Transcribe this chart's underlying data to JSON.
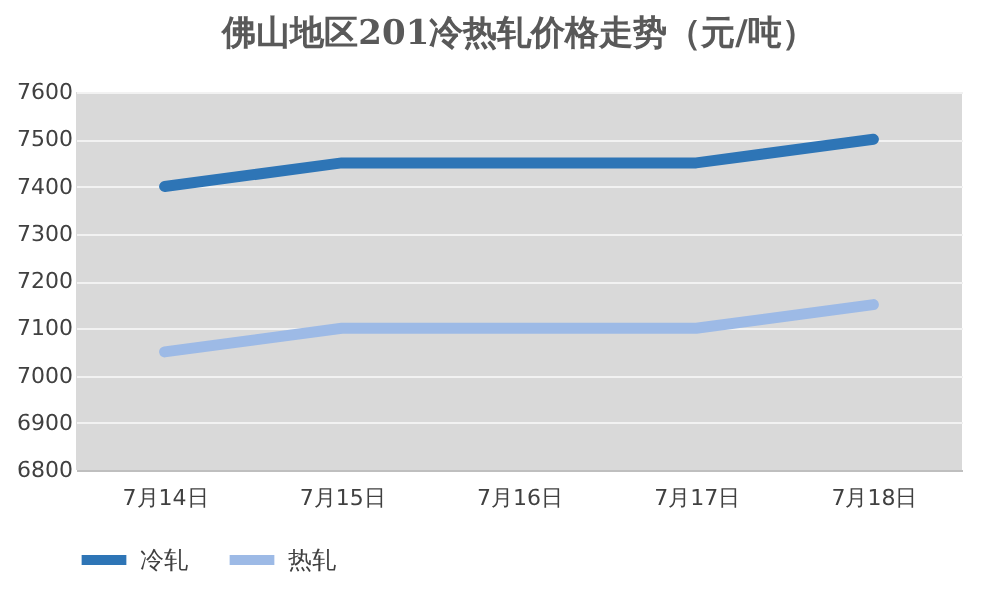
{
  "chart_data": {
    "type": "line",
    "title": "佛山地区201冷热轧价格走势（元/吨）",
    "categories": [
      "7月14日",
      "7月15日",
      "7月16日",
      "7月17日",
      "7月18日"
    ],
    "series": [
      {
        "name": "冷轧",
        "color": "#2e75b6",
        "values": [
          7400,
          7450,
          7450,
          7450,
          7500
        ]
      },
      {
        "name": "热轧",
        "color": "#9dbae6",
        "values": [
          7050,
          7100,
          7100,
          7100,
          7150
        ]
      }
    ],
    "ylim": [
      6800,
      7600
    ],
    "yticks": [
      6800,
      6900,
      7000,
      7100,
      7200,
      7300,
      7400,
      7500,
      7600
    ],
    "grid": "y",
    "legend": "bottom",
    "marker": "none",
    "line_style": "solid"
  }
}
